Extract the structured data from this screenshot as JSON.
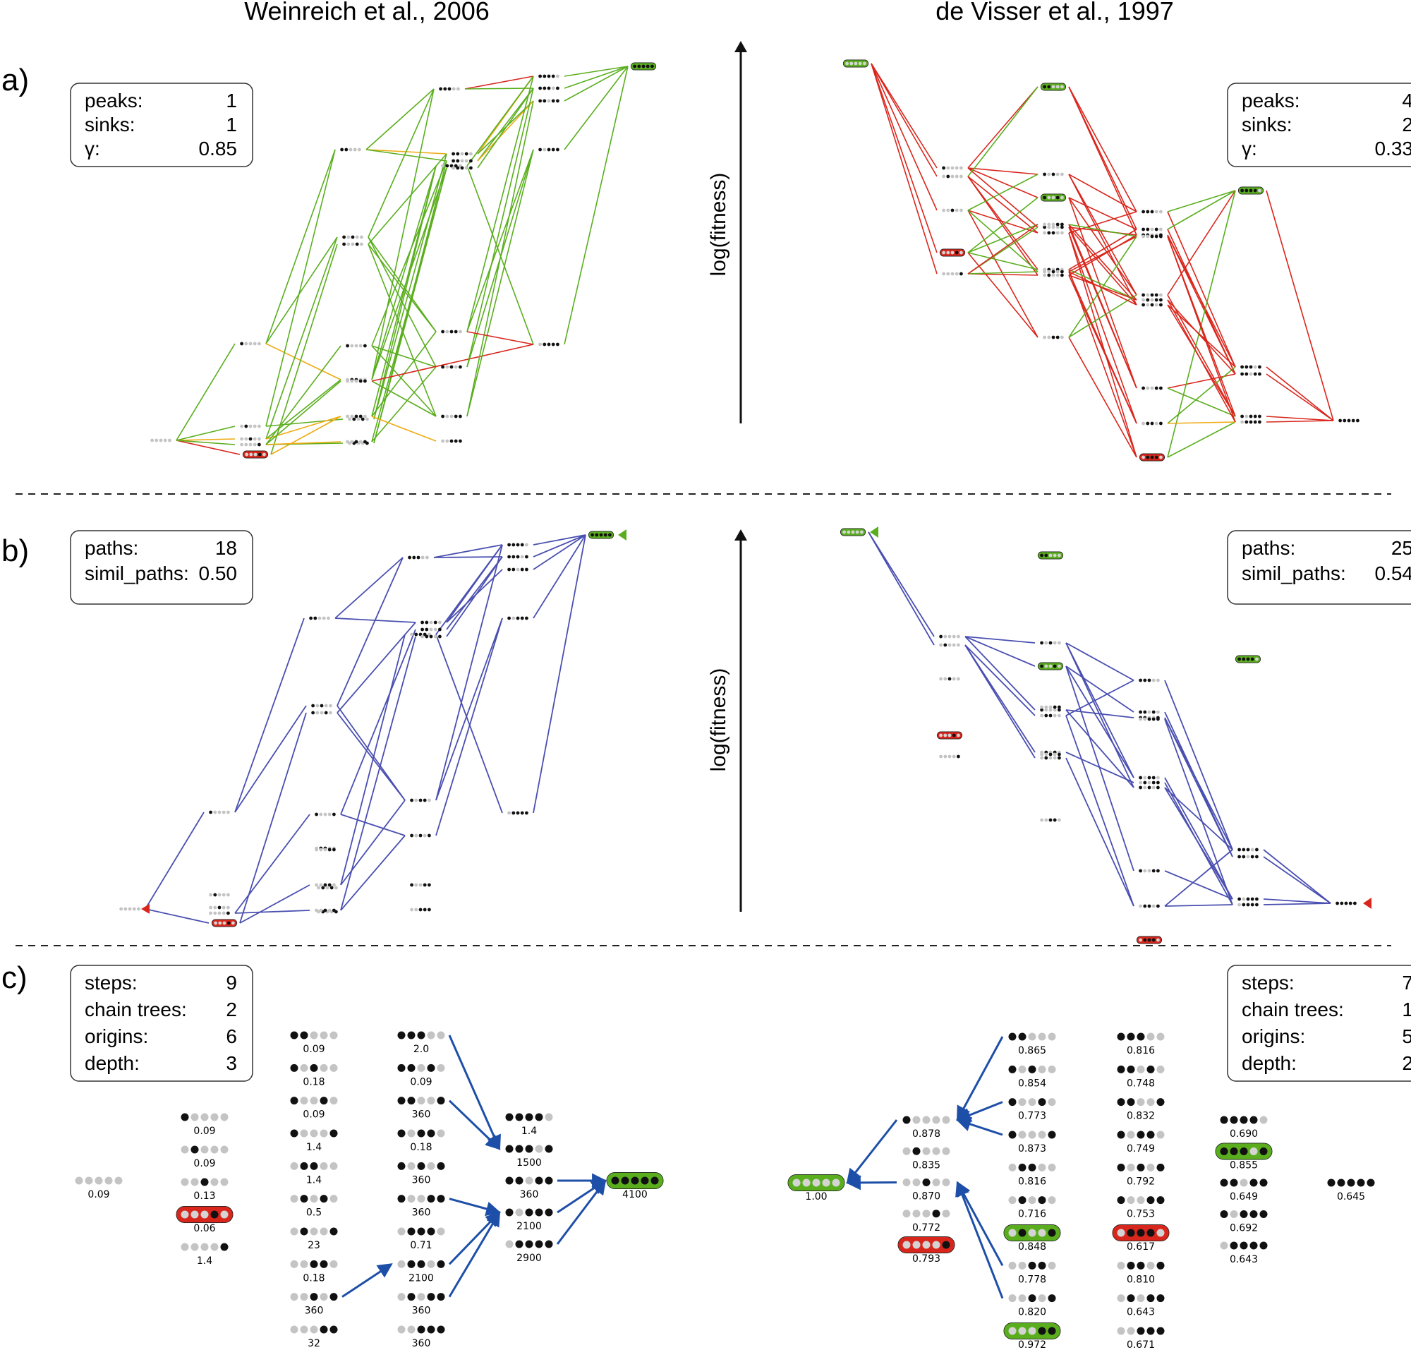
{
  "titles": {
    "left": "Weinreich et al., 2006",
    "right": "de Visser et al., 1997"
  },
  "panels": {
    "a": "a)",
    "b": "b)",
    "c": "c)"
  },
  "axis_label": "log(fitness)",
  "stats": {
    "a_left": [
      [
        "peaks:",
        "1"
      ],
      [
        "sinks:",
        "1"
      ],
      [
        "γ:",
        "0.85"
      ]
    ],
    "a_right": [
      [
        "peaks:",
        "4"
      ],
      [
        "sinks:",
        "2"
      ],
      [
        "γ:",
        "0.33"
      ]
    ],
    "b_left": [
      [
        "paths:",
        "18"
      ],
      [
        "simil_paths:",
        "0.50"
      ]
    ],
    "b_right": [
      [
        "paths:",
        "25"
      ],
      [
        "simil_paths:",
        "0.54"
      ]
    ],
    "c_left": [
      [
        "steps:",
        "9"
      ],
      [
        "chain trees:",
        "2"
      ],
      [
        "origins:",
        "6"
      ],
      [
        "depth:",
        "3"
      ]
    ],
    "c_right": [
      [
        "steps:",
        "7"
      ],
      [
        "chain trees:",
        "1"
      ],
      [
        "origins:",
        "5"
      ],
      [
        "depth:",
        "2"
      ]
    ]
  },
  "colors": {
    "green": "#5aae1e",
    "red": "#d9261c",
    "orange": "#eeaa11",
    "blue": "#4a4fb0",
    "arrow": "#1e4fa8",
    "dot_on": "#111111",
    "dot_off": "#c4c4c4"
  },
  "panel_c": {
    "left": {
      "columns": [
        {
          "nodes": [
            {
              "bits": "00000",
              "value": "0.09"
            }
          ]
        },
        {
          "nodes": [
            {
              "bits": "10000",
              "value": "0.09"
            },
            {
              "bits": "01000",
              "value": "0.09"
            },
            {
              "bits": "00100",
              "value": "0.13"
            },
            {
              "bits": "00010",
              "value": "0.06",
              "mark": "red"
            },
            {
              "bits": "00001",
              "value": "1.4"
            }
          ]
        },
        {
          "nodes": [
            {
              "bits": "11000",
              "value": "0.09"
            },
            {
              "bits": "10100",
              "value": "0.18"
            },
            {
              "bits": "10010",
              "value": "0.09"
            },
            {
              "bits": "10001",
              "value": "1.4"
            },
            {
              "bits": "01100",
              "value": "1.4"
            },
            {
              "bits": "01010",
              "value": "0.5"
            },
            {
              "bits": "01001",
              "value": "23"
            },
            {
              "bits": "00110",
              "value": "0.18"
            },
            {
              "bits": "00101",
              "value": "360"
            },
            {
              "bits": "00011",
              "value": "32"
            }
          ]
        },
        {
          "nodes": [
            {
              "bits": "11100",
              "value": "2.0"
            },
            {
              "bits": "11010",
              "value": "0.09"
            },
            {
              "bits": "11001",
              "value": "360"
            },
            {
              "bits": "10110",
              "value": "0.18"
            },
            {
              "bits": "10101",
              "value": "360"
            },
            {
              "bits": "10011",
              "value": "360"
            },
            {
              "bits": "01110",
              "value": "0.71"
            },
            {
              "bits": "01101",
              "value": "2100"
            },
            {
              "bits": "01011",
              "value": "360"
            },
            {
              "bits": "00111",
              "value": "360"
            }
          ]
        },
        {
          "nodes": [
            {
              "bits": "11110",
              "value": "1.4"
            },
            {
              "bits": "11101",
              "value": "1500"
            },
            {
              "bits": "11011",
              "value": "360"
            },
            {
              "bits": "10111",
              "value": "2100"
            },
            {
              "bits": "01111",
              "value": "2900"
            }
          ]
        },
        {
          "nodes": [
            {
              "bits": "11111",
              "value": "4100",
              "mark": "green"
            }
          ]
        }
      ]
    },
    "right": {
      "columns": [
        {
          "nodes": [
            {
              "bits": "00000",
              "value": "1.00",
              "mark": "green"
            }
          ]
        },
        {
          "nodes": [
            {
              "bits": "10000",
              "value": "0.878"
            },
            {
              "bits": "01000",
              "value": "0.835"
            },
            {
              "bits": "00100",
              "value": "0.870"
            },
            {
              "bits": "00010",
              "value": "0.772"
            },
            {
              "bits": "00001",
              "value": "0.793",
              "mark": "red"
            }
          ]
        },
        {
          "nodes": [
            {
              "bits": "11000",
              "value": "0.865"
            },
            {
              "bits": "10100",
              "value": "0.854"
            },
            {
              "bits": "10010",
              "value": "0.773"
            },
            {
              "bits": "10001",
              "value": "0.873"
            },
            {
              "bits": "01100",
              "value": "0.816"
            },
            {
              "bits": "01010",
              "value": "0.716"
            },
            {
              "bits": "01001",
              "value": "0.848",
              "mark": "green"
            },
            {
              "bits": "00110",
              "value": "0.778"
            },
            {
              "bits": "00101",
              "value": "0.820"
            },
            {
              "bits": "00011",
              "value": "0.972",
              "mark": "green"
            }
          ]
        },
        {
          "nodes": [
            {
              "bits": "11100",
              "value": "0.816"
            },
            {
              "bits": "11010",
              "value": "0.748"
            },
            {
              "bits": "11001",
              "value": "0.832"
            },
            {
              "bits": "10110",
              "value": "0.749"
            },
            {
              "bits": "10101",
              "value": "0.792"
            },
            {
              "bits": "10011",
              "value": "0.753"
            },
            {
              "bits": "01110",
              "value": "0.617",
              "mark": "red"
            },
            {
              "bits": "01101",
              "value": "0.810"
            },
            {
              "bits": "01011",
              "value": "0.643"
            },
            {
              "bits": "00111",
              "value": "0.671"
            }
          ]
        },
        {
          "nodes": [
            {
              "bits": "11110",
              "value": "0.690"
            },
            {
              "bits": "11101",
              "value": "0.855",
              "mark": "green"
            },
            {
              "bits": "11011",
              "value": "0.649"
            },
            {
              "bits": "10111",
              "value": "0.692"
            },
            {
              "bits": "01111",
              "value": "0.643"
            }
          ]
        },
        {
          "nodes": [
            {
              "bits": "11111",
              "value": "0.645"
            }
          ]
        }
      ]
    }
  }
}
